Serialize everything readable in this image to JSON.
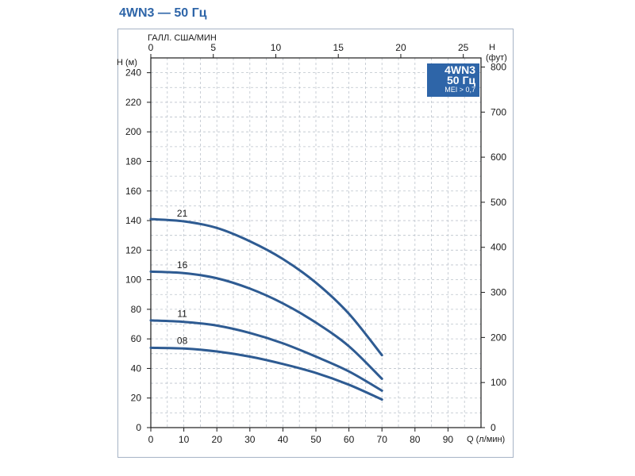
{
  "page": {
    "title": "4WN3 — 50 Гц"
  },
  "badge": {
    "model": "4WN3",
    "freq": "50 Гц",
    "mei": "MEI > 0,7"
  },
  "colors": {
    "accent": "#2e65a8",
    "curve": "#2e5b92",
    "grid": "#bcc3cc"
  },
  "chart_data": {
    "type": "line",
    "title": "4WN3 — 50 Гц",
    "x_axis": {
      "label": "Q (л/мин)",
      "range": [
        0,
        100
      ],
      "ticks": [
        0,
        10,
        20,
        30,
        40,
        50,
        60,
        70,
        80,
        90
      ]
    },
    "x2_axis": {
      "label": "ГАЛЛ. США/МИН",
      "range": [
        0,
        26.4172
      ],
      "ticks": [
        0,
        5,
        10,
        15,
        20,
        25
      ]
    },
    "y_axis": {
      "label": "H (м)",
      "range": [
        0,
        250
      ],
      "ticks": [
        0,
        20,
        40,
        60,
        80,
        100,
        120,
        140,
        160,
        180,
        200,
        220,
        240
      ]
    },
    "y2_axis": {
      "label_top": "H",
      "label_bottom": "(фут)",
      "range": [
        0,
        820.21
      ],
      "ticks": [
        0,
        100,
        200,
        300,
        400,
        500,
        600,
        700,
        800
      ]
    },
    "grid": true,
    "series": [
      {
        "name": "21",
        "x": [
          0,
          10,
          20,
          30,
          40,
          50,
          60,
          70
        ],
        "y": [
          141,
          139.5,
          135,
          126,
          114,
          98,
          77,
          49
        ]
      },
      {
        "name": "16",
        "x": [
          0,
          10,
          20,
          30,
          40,
          50,
          60,
          70
        ],
        "y": [
          105.5,
          104.5,
          101,
          94,
          84,
          71,
          55,
          33
        ]
      },
      {
        "name": "11",
        "x": [
          0,
          10,
          20,
          30,
          40,
          50,
          60,
          70
        ],
        "y": [
          72.5,
          71.5,
          69,
          64,
          57,
          48,
          38,
          25
        ]
      },
      {
        "name": "08",
        "x": [
          0,
          10,
          20,
          30,
          40,
          50,
          60,
          70
        ],
        "y": [
          54,
          53.5,
          51.5,
          48,
          43,
          37,
          29,
          19
        ]
      }
    ]
  }
}
